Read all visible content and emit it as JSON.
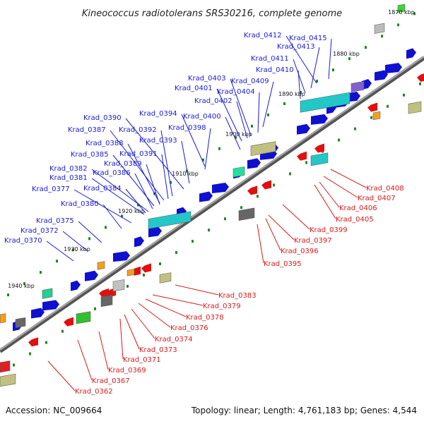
{
  "title": "Kineococcus radiotolerans SRS30216, complete genome",
  "footer": {
    "accession": "Accession: NC_009664",
    "stats": "Topology: linear; Length: 4,761,183 bp; Genes: 4,544"
  },
  "ruler_labels": [
    "1870 kbp",
    "1880 kbp",
    "1890 kbp",
    "1900 kbp",
    "1910 kbp",
    "1920 kbp",
    "1930 kbp",
    "1940 kbp"
  ],
  "colors": {
    "forward_label": "#1a1ad8",
    "reverse_label": "#d81a1a",
    "backbone": "#888888",
    "forward_gene": "#1010d0",
    "reverse_gene": "#e01010",
    "tick": "#228822"
  },
  "forward_labels": [
    "Krad_0415",
    "Krad_0412",
    "Krad_0413",
    "Krad_0411",
    "Krad_0410",
    "Krad_0409",
    "Krad_0403",
    "Krad_0404",
    "Krad_0401",
    "Krad_0402",
    "Krad_0394",
    "Krad_0400",
    "Krad_0390",
    "Krad_0398",
    "Krad_0392",
    "Krad_0387",
    "Krad_0393",
    "Krad_0388",
    "Krad_0385",
    "Krad_0391",
    "Krad_0389",
    "Krad_0382",
    "Krad_0386",
    "Krad_0381",
    "Krad_0384",
    "Krad_0377",
    "Krad_0380",
    "Krad_0375",
    "Krad_0372",
    "Krad_0370"
  ],
  "reverse_labels": [
    "Krad_0408",
    "Krad_0407",
    "Krad_0406",
    "Krad_0405",
    "Krad_0399",
    "Krad_0397",
    "Krad_0396",
    "Krad_0395",
    "Krad_0383",
    "Krad_0379",
    "Krad_0378",
    "Krad_0376",
    "Krad_0374",
    "Krad_0373",
    "Krad_0371",
    "Krad_0369",
    "Krad_0367",
    "Krad_0362"
  ]
}
